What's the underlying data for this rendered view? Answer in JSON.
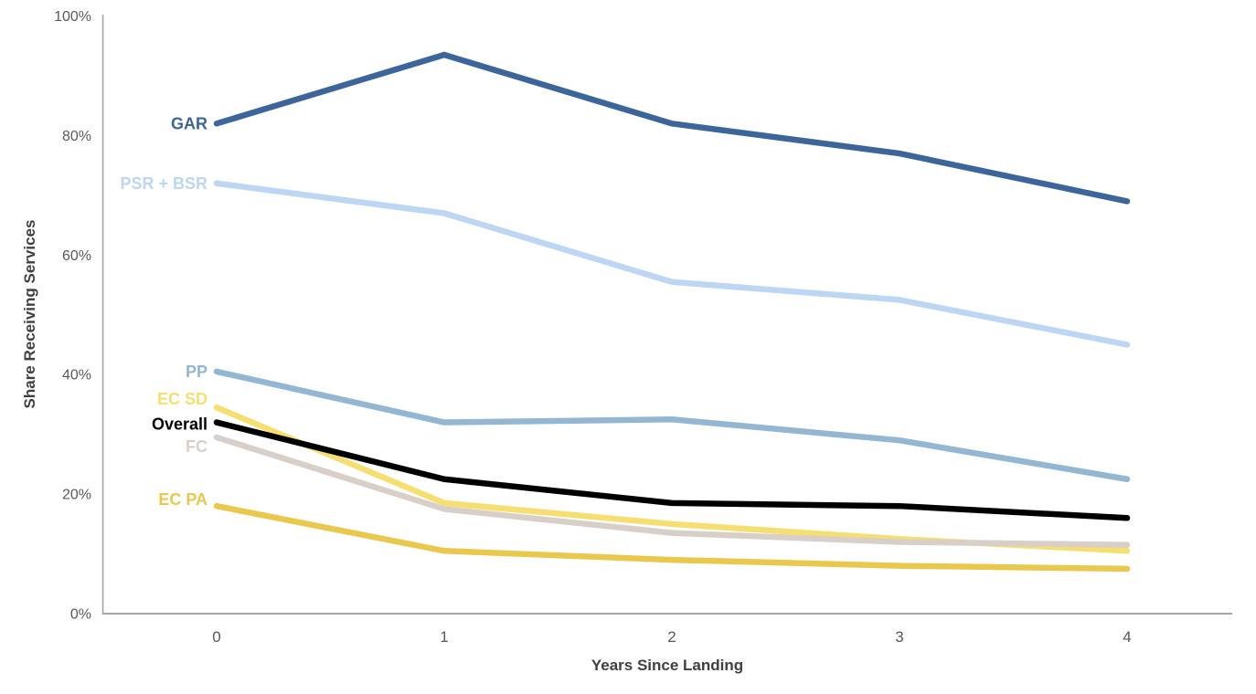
{
  "chart_data": {
    "type": "line",
    "title": "",
    "xlabel": "Years Since Landing",
    "ylabel": "Share Receiving Services",
    "x": [
      0,
      1,
      2,
      3,
      4
    ],
    "x_tick_labels": [
      "0",
      "1",
      "2",
      "3",
      "4"
    ],
    "y_ticks": [
      0,
      20,
      40,
      60,
      80,
      100
    ],
    "y_tick_labels": [
      "0%",
      "20%",
      "40%",
      "60%",
      "80%",
      "100%"
    ],
    "ylim": [
      0,
      100
    ],
    "xlim": [
      0,
      4
    ],
    "grid": "off",
    "legend": "inline-labels-left-of-lines",
    "series": [
      {
        "name": "GAR",
        "values": [
          82,
          93.5,
          82,
          77,
          69
        ],
        "color": "#3B659B",
        "label_offset_y": 0,
        "z": 0
      },
      {
        "name": "PSR + BSR",
        "values": [
          72,
          67,
          55.5,
          52.5,
          45
        ],
        "color": "#BCD6F4",
        "label_offset_y": 0,
        "z": 0
      },
      {
        "name": "PP",
        "values": [
          40.5,
          32,
          32.5,
          29,
          22.5
        ],
        "color": "#93B6D2",
        "label_offset_y": 0,
        "z": 0
      },
      {
        "name": "EC SD",
        "values": [
          34.5,
          18.5,
          15,
          12.5,
          10.5
        ],
        "color": "#F6DF70",
        "label_offset_y": -9,
        "z": 0
      },
      {
        "name": "Overall",
        "values": [
          32,
          22.5,
          18.5,
          18,
          16
        ],
        "color": "#000000",
        "label_offset_y": 2,
        "z": 1
      },
      {
        "name": "FC",
        "values": [
          29.5,
          17.5,
          13.5,
          12,
          11.5
        ],
        "color": "#D9CFC9",
        "label_offset_y": 10,
        "z": 0
      },
      {
        "name": "EC PA",
        "values": [
          18,
          10.5,
          9,
          8,
          7.5
        ],
        "color": "#EAC84E",
        "label_offset_y": -7,
        "z": 0
      }
    ],
    "colors": {
      "background": "#FFFFFF",
      "axis_line": "#A6A6A6",
      "tick_text": "#595959",
      "axis_title_text": "#404040"
    }
  }
}
